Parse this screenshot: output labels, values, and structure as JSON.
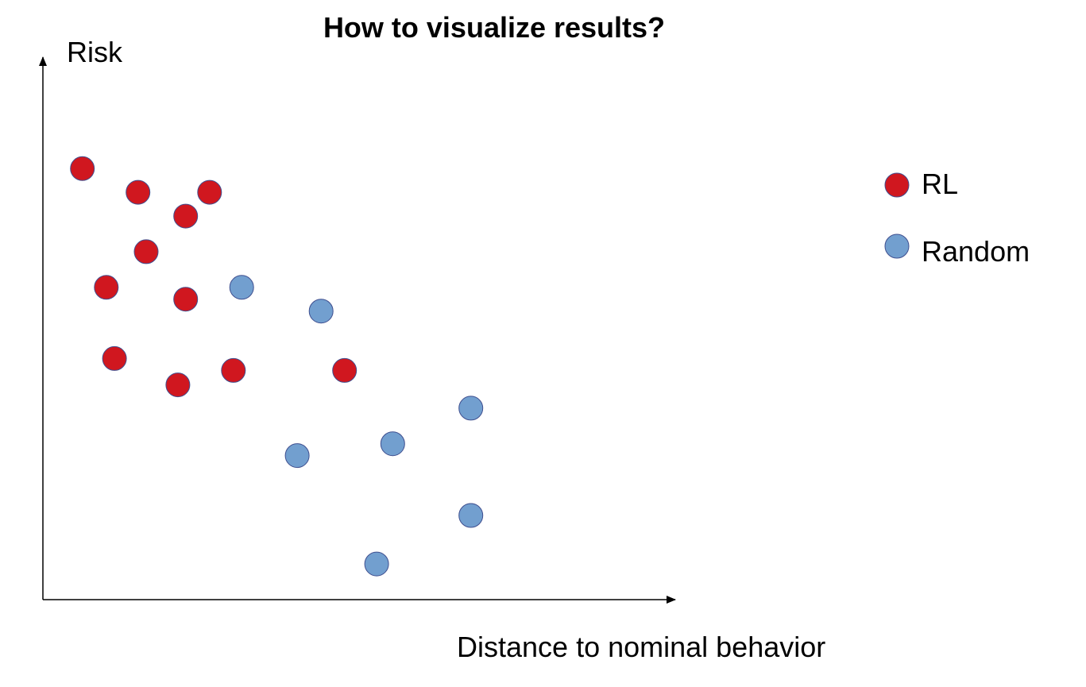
{
  "chart_data": {
    "type": "scatter",
    "title": "How to visualize results?",
    "xlabel": "Distance to nominal behavior",
    "ylabel": "Risk",
    "xlim": [
      0,
      100
    ],
    "ylim": [
      0,
      100
    ],
    "grid": false,
    "ticks": false,
    "legend_position": "right",
    "series": [
      {
        "name": "RL",
        "color": "#d0171f",
        "points": [
          {
            "x": 9.6,
            "y": 83.5
          },
          {
            "x": 23.1,
            "y": 78.9
          },
          {
            "x": 34.7,
            "y": 74.3
          },
          {
            "x": 40.5,
            "y": 78.9
          },
          {
            "x": 25.1,
            "y": 67.4
          },
          {
            "x": 15.4,
            "y": 60.5
          },
          {
            "x": 34.7,
            "y": 58.2
          },
          {
            "x": 17.4,
            "y": 46.7
          },
          {
            "x": 32.8,
            "y": 41.6
          },
          {
            "x": 46.3,
            "y": 44.4
          },
          {
            "x": 73.3,
            "y": 44.4
          }
        ]
      },
      {
        "name": "Random",
        "color": "#729fcf",
        "points": [
          {
            "x": 48.3,
            "y": 60.5
          },
          {
            "x": 67.6,
            "y": 55.9
          },
          {
            "x": 61.8,
            "y": 27.9
          },
          {
            "x": 85.0,
            "y": 30.2
          },
          {
            "x": 104.0,
            "y": 37.1
          },
          {
            "x": 104.0,
            "y": 16.3
          },
          {
            "x": 81.1,
            "y": 6.9
          }
        ]
      }
    ]
  }
}
